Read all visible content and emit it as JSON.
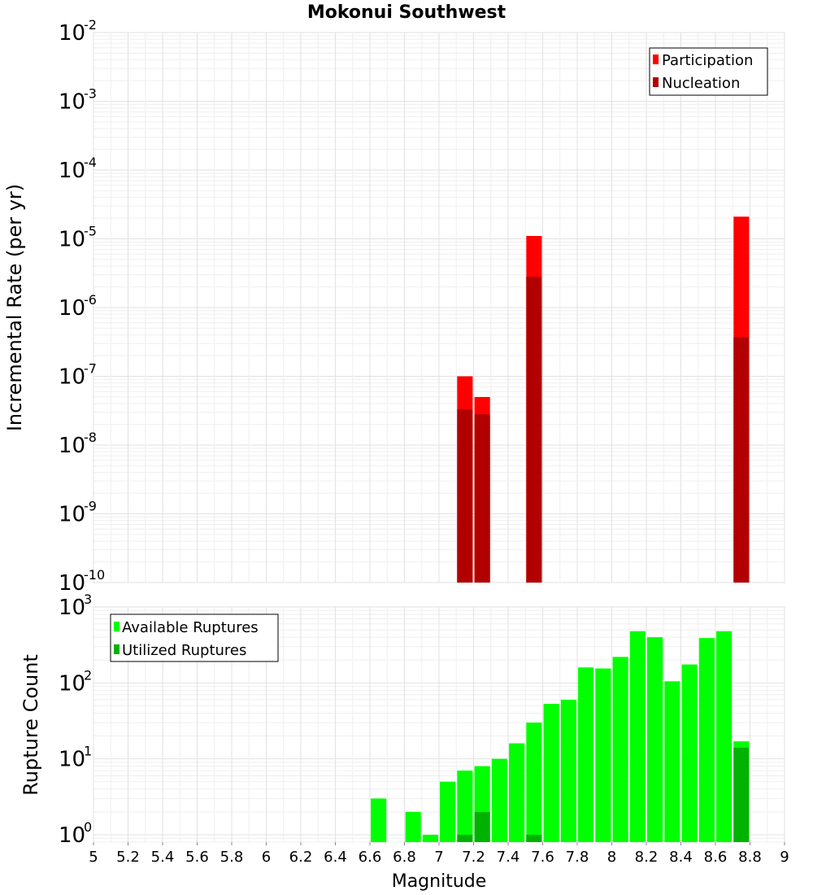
{
  "chart_data": [
    {
      "type": "bar",
      "title": "Mokonui Southwest",
      "ylabel": "Incremental Rate (per yr)",
      "xlabel": "",
      "xlim": [
        5,
        9
      ],
      "ylim": [
        1e-10,
        0.01
      ],
      "yscale": "log",
      "bar_width": 0.09,
      "grid": true,
      "legend_position": "top-right",
      "series": [
        {
          "name": "Participation",
          "color": "#ff0000",
          "x": [
            7.15,
            7.25,
            7.55,
            8.75
          ],
          "values": [
            1e-07,
            5e-08,
            1.1e-05,
            2.1e-05
          ]
        },
        {
          "name": "Nucleation",
          "color": "#b20000",
          "x": [
            7.15,
            7.25,
            7.55,
            8.75
          ],
          "values": [
            3.3e-08,
            2.8e-08,
            2.8e-06,
            3.7e-07
          ]
        }
      ]
    },
    {
      "type": "bar",
      "title": "",
      "ylabel": "Rupture Count",
      "xlabel": "Magnitude",
      "xlim": [
        5,
        9
      ],
      "ylim": [
        0.8,
        1000
      ],
      "yscale": "log",
      "bar_width": 0.09,
      "grid": true,
      "legend_position": "top-left",
      "xticks": [
        5,
        5.2,
        5.4,
        5.6,
        5.8,
        6,
        6.2,
        6.4,
        6.6,
        6.8,
        7,
        7.2,
        7.4,
        7.6,
        7.8,
        8,
        8.2,
        8.4,
        8.6,
        8.8,
        9
      ],
      "xtick_labels": [
        "5",
        "5.2",
        "5.4",
        "5.6",
        "5.8",
        "6",
        "6.2",
        "6.4",
        "6.6",
        "6.8",
        "7",
        "7.2",
        "7.4",
        "7.6",
        "7.8",
        "8",
        "8.2",
        "8.4",
        "8.6",
        "8.8",
        "9"
      ],
      "series": [
        {
          "name": "Available Ruptures",
          "color": "#00ff00",
          "x": [
            6.65,
            6.85,
            6.95,
            7.05,
            7.15,
            7.25,
            7.35,
            7.45,
            7.55,
            7.65,
            7.75,
            7.85,
            7.95,
            8.05,
            8.15,
            8.25,
            8.35,
            8.45,
            8.55,
            8.65,
            8.75
          ],
          "values": [
            3,
            2,
            1,
            5,
            7,
            8,
            10,
            16,
            30,
            53,
            60,
            160,
            155,
            220,
            480,
            400,
            105,
            175,
            390,
            480,
            17
          ]
        },
        {
          "name": "Utilized Ruptures",
          "color": "#00b200",
          "x": [
            7.15,
            7.25,
            7.55,
            8.75
          ],
          "values": [
            1,
            2,
            1,
            14
          ]
        }
      ]
    }
  ]
}
